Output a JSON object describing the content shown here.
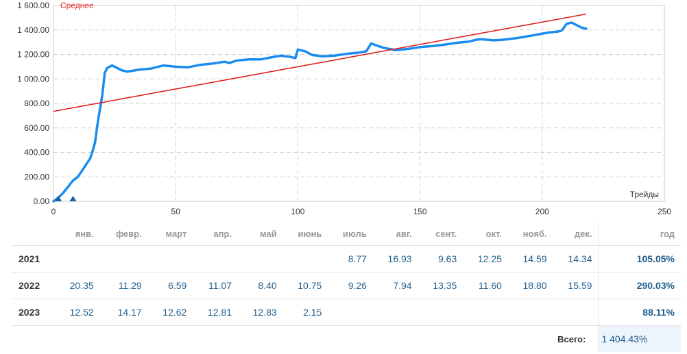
{
  "chart_data": {
    "type": "line",
    "legend": "Среднее",
    "xlabel": "Трейды",
    "xlim": [
      0,
      250
    ],
    "ylim": [
      0,
      1600
    ],
    "x_ticks": [
      "0",
      "50",
      "100",
      "150",
      "200",
      "250"
    ],
    "y_ticks": [
      "0.00",
      "200.00",
      "400.00",
      "600.00",
      "800.00",
      "1 000.00",
      "1 200.00",
      "1 400.00",
      "1 600.00"
    ],
    "grid": true,
    "colors": {
      "equity": "#1a8cf0",
      "trend": "#e02020",
      "marker": "#1c5f9e"
    },
    "series": [
      {
        "kind": "equity",
        "x": [
          0,
          2,
          4,
          6,
          8,
          10,
          12,
          14,
          15,
          16,
          17,
          18,
          19,
          20,
          21,
          22,
          24,
          26,
          28,
          30,
          32,
          35,
          40,
          45,
          50,
          55,
          60,
          65,
          70,
          72,
          75,
          80,
          85,
          90,
          93,
          97,
          99,
          100,
          101,
          103,
          106,
          110,
          115,
          120,
          125,
          128,
          130,
          132,
          135,
          140,
          145,
          150,
          155,
          160,
          165,
          170,
          173,
          175,
          180,
          183,
          186,
          190,
          193,
          196,
          200,
          203,
          206,
          208,
          210,
          212,
          214,
          216,
          218
        ],
        "y": [
          0,
          30,
          70,
          120,
          170,
          200,
          260,
          320,
          350,
          410,
          480,
          630,
          750,
          870,
          1050,
          1090,
          1110,
          1090,
          1070,
          1060,
          1065,
          1075,
          1085,
          1110,
          1100,
          1095,
          1115,
          1125,
          1140,
          1130,
          1150,
          1160,
          1160,
          1180,
          1190,
          1180,
          1170,
          1240,
          1235,
          1225,
          1195,
          1185,
          1190,
          1205,
          1215,
          1225,
          1290,
          1275,
          1255,
          1235,
          1245,
          1260,
          1268,
          1280,
          1295,
          1305,
          1320,
          1325,
          1315,
          1318,
          1325,
          1335,
          1345,
          1355,
          1370,
          1380,
          1385,
          1395,
          1450,
          1460,
          1440,
          1420,
          1410
        ]
      },
      {
        "kind": "average",
        "x": [
          0,
          218
        ],
        "y": [
          735,
          1530
        ]
      }
    ],
    "markers": [
      {
        "x": 2,
        "y": 0
      },
      {
        "x": 8,
        "y": 0
      }
    ]
  },
  "table": {
    "months": [
      "янв.",
      "февр.",
      "март",
      "апр.",
      "май",
      "июнь",
      "июль",
      "авг.",
      "сент.",
      "окт.",
      "нояб.",
      "дек."
    ],
    "total_header": "год",
    "rows": [
      {
        "year": "2021",
        "values": [
          "",
          "",
          "",
          "",
          "",
          "",
          "8.77",
          "16.93",
          "9.63",
          "12.25",
          "14.59",
          "14.34"
        ],
        "total": "105.05%"
      },
      {
        "year": "2022",
        "values": [
          "20.35",
          "11.29",
          "6.59",
          "11.07",
          "8.40",
          "10.75",
          "9.26",
          "7.94",
          "13.35",
          "11.60",
          "18.80",
          "15.59"
        ],
        "total": "290.03%"
      },
      {
        "year": "2023",
        "values": [
          "12.52",
          "14.17",
          "12.62",
          "12.81",
          "12.83",
          "2.15",
          "",
          "",
          "",
          "",
          "",
          ""
        ],
        "total": "88.11%"
      }
    ],
    "grand_total_label": "Всего:",
    "grand_total_value": "1 404.43%"
  }
}
